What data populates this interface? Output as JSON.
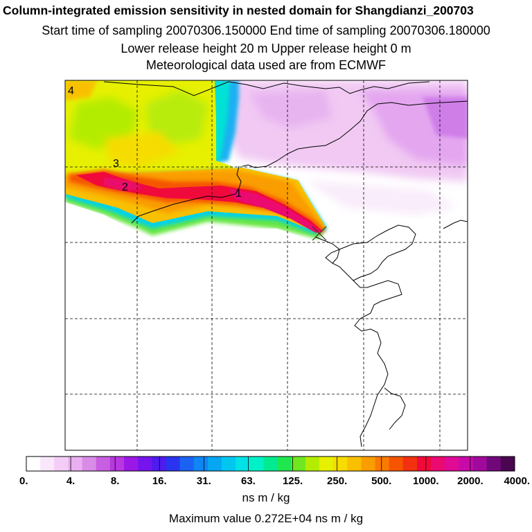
{
  "header": {
    "title": "Column-integrated emission sensitivity in nested domain for Shangdianzi_200703",
    "sampling": "Start time of sampling 20070306.150000     End time of sampling 20070306.180000",
    "release": "Lower release height   20 m          Upper release height    0 m",
    "met": "Meteorological data used are from ECMWF"
  },
  "map": {
    "trajectory_labels": [
      "1",
      "2",
      "3",
      "4"
    ],
    "receptor_marker": "×"
  },
  "colorbar": {
    "tick_labels": [
      "0.",
      "4.",
      "8.",
      "16.",
      "31.",
      "63.",
      "125.",
      "250.",
      "500.",
      "1000.",
      "2000.",
      "4000."
    ],
    "colors": [
      "#ffffff",
      "#fbe7fb",
      "#f3cdf5",
      "#e9aff0",
      "#d98be8",
      "#c85fe0",
      "#b737e0",
      "#9b18e6",
      "#7514ec",
      "#4e1bf0",
      "#2a34f0",
      "#1b62f2",
      "#0f86f3",
      "#07a6f2",
      "#00c6f0",
      "#00e2e6",
      "#00f0c8",
      "#00ea90",
      "#20e650",
      "#6fe620",
      "#b4ec00",
      "#e6f000",
      "#f6dc00",
      "#f9c000",
      "#fa9d00",
      "#f97a00",
      "#f65400",
      "#f33010",
      "#f00a3c",
      "#ea0a70",
      "#df0a96",
      "#c80aa8",
      "#a00a9c",
      "#70087a",
      "#4a0650"
    ],
    "units": "ns m / kg",
    "max_value": "Maximum value  0.272E+04 ns m / kg"
  }
}
